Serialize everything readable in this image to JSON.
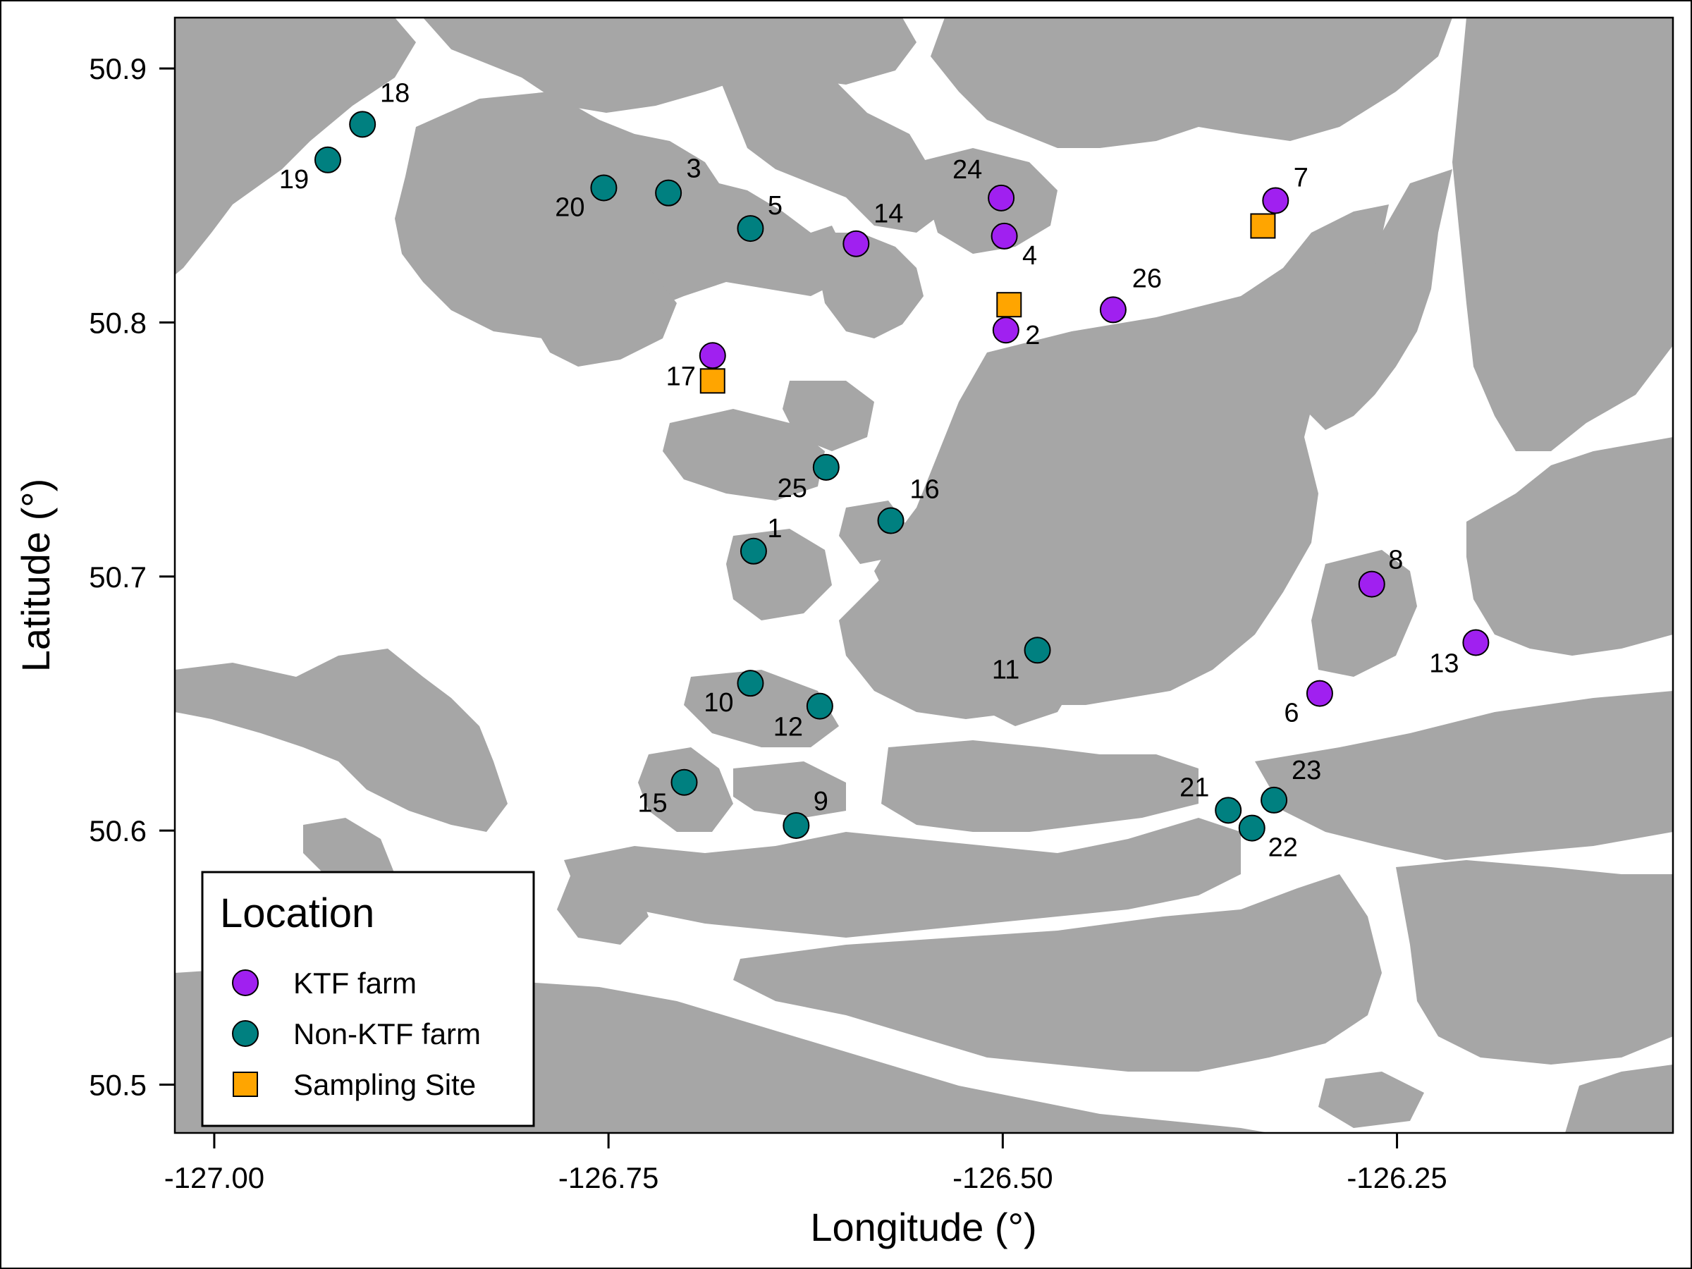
{
  "colors": {
    "ktf": "#a020f0",
    "non_ktf": "#008080",
    "sampling": "#ffa500",
    "land": "#a6a6a6",
    "water": "#ffffff"
  },
  "chart_data": {
    "type": "scatter",
    "xlabel": "Longitude (°)",
    "ylabel": "Latitude (°)",
    "xlim": [
      -127.025,
      -126.075
    ],
    "ylim": [
      50.481,
      50.92
    ],
    "x_ticks": [
      -127.0,
      -126.75,
      -126.5,
      -126.25
    ],
    "x_tick_labels": [
      "-127.00",
      "-126.75",
      "-126.50",
      "-126.25"
    ],
    "y_ticks": [
      50.5,
      50.6,
      50.7,
      50.8,
      50.9
    ],
    "y_tick_labels": [
      "50.5",
      "50.6",
      "50.7",
      "50.8",
      "50.9"
    ],
    "grid": false,
    "legend": {
      "title": "Location",
      "placement": "bottom-left",
      "entries": [
        "KTF farm",
        "Non-KTF farm",
        "Sampling Site"
      ]
    },
    "series": [
      {
        "name": "KTF farm",
        "marker": "circle",
        "points": [
          {
            "label": "2",
            "x": -126.498,
            "y": 50.797
          },
          {
            "label": "4",
            "x": -126.499,
            "y": 50.834
          },
          {
            "label": "6",
            "x": -126.299,
            "y": 50.654
          },
          {
            "label": "7",
            "x": -126.327,
            "y": 50.848
          },
          {
            "label": "8",
            "x": -126.266,
            "y": 50.697
          },
          {
            "label": "13",
            "x": -126.2,
            "y": 50.674
          },
          {
            "label": "14",
            "x": -126.593,
            "y": 50.831
          },
          {
            "label": "17",
            "x": -126.684,
            "y": 50.787
          },
          {
            "label": "24",
            "x": -126.501,
            "y": 50.849
          },
          {
            "label": "26",
            "x": -126.43,
            "y": 50.805
          }
        ]
      },
      {
        "name": "Non-KTF farm",
        "marker": "circle",
        "points": [
          {
            "label": "1",
            "x": -126.658,
            "y": 50.71
          },
          {
            "label": "3",
            "x": -126.712,
            "y": 50.851
          },
          {
            "label": "5",
            "x": -126.66,
            "y": 50.837
          },
          {
            "label": "9",
            "x": -126.631,
            "y": 50.602
          },
          {
            "label": "10",
            "x": -126.66,
            "y": 50.658
          },
          {
            "label": "11",
            "x": -126.478,
            "y": 50.671
          },
          {
            "label": "12",
            "x": -126.616,
            "y": 50.649
          },
          {
            "label": "15",
            "x": -126.702,
            "y": 50.619
          },
          {
            "label": "16",
            "x": -126.571,
            "y": 50.722
          },
          {
            "label": "18",
            "x": -126.906,
            "y": 50.878
          },
          {
            "label": "19",
            "x": -126.928,
            "y": 50.864
          },
          {
            "label": "20",
            "x": -126.753,
            "y": 50.853
          },
          {
            "label": "21",
            "x": -126.357,
            "y": 50.608
          },
          {
            "label": "22",
            "x": -126.342,
            "y": 50.601
          },
          {
            "label": "23",
            "x": -126.328,
            "y": 50.612
          },
          {
            "label": "25",
            "x": -126.612,
            "y": 50.743
          }
        ]
      },
      {
        "name": "Sampling Site",
        "marker": "square",
        "points": [
          {
            "x": -126.496,
            "y": 50.807
          },
          {
            "x": -126.684,
            "y": 50.777
          },
          {
            "x": -126.335,
            "y": 50.838
          }
        ]
      }
    ]
  }
}
